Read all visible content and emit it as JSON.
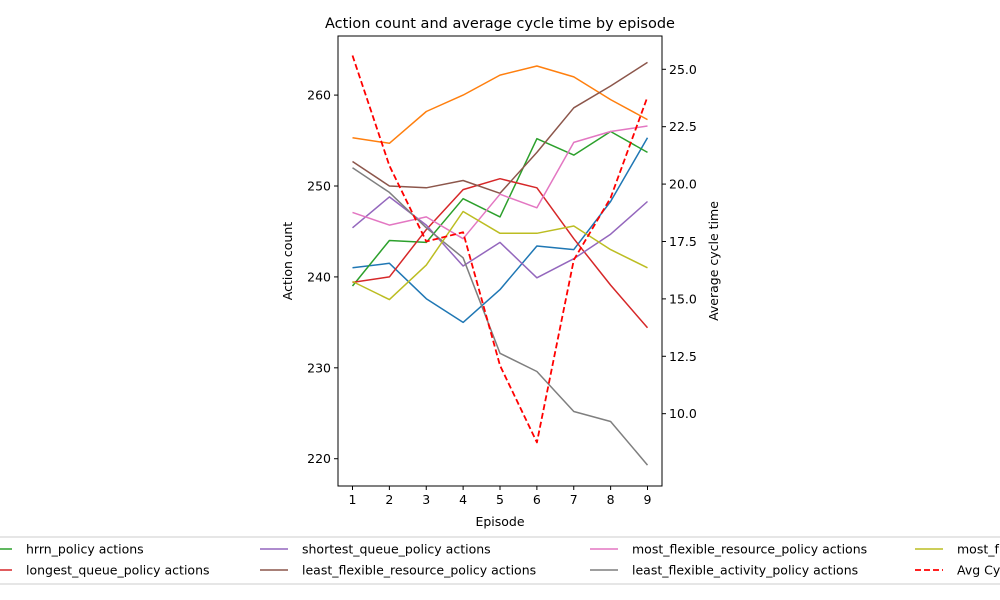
{
  "chart_data": {
    "type": "line",
    "title": "Action count and average cycle time by episode",
    "xlabel": "Episode",
    "ylabel": "Action count",
    "ylabel_right": "Average cycle time",
    "x": [
      1,
      2,
      3,
      4,
      5,
      6,
      7,
      8,
      9
    ],
    "x_ticks": [
      "1",
      "2",
      "3",
      "4",
      "5",
      "6",
      "7",
      "8",
      "9"
    ],
    "ylim": [
      217,
      266.5
    ],
    "y_ticks": [
      "220",
      "230",
      "240",
      "250",
      "260"
    ],
    "ylim_right": [
      6.85,
      26.45
    ],
    "y_ticks_right": [
      "10.0",
      "12.5",
      "15.0",
      "17.5",
      "20.0",
      "22.5",
      "25.0"
    ],
    "grid": false,
    "legend_position": "bottom",
    "series": [
      {
        "name": "",
        "color": "#1f77b4",
        "style": "solid",
        "axis": "left",
        "values": [
          241.0,
          241.5,
          237.6,
          235.0,
          238.6,
          243.4,
          243.0,
          248.3,
          255.3
        ]
      },
      {
        "name": "",
        "color": "#ff7f0e",
        "style": "solid",
        "axis": "left",
        "values": [
          255.3,
          254.7,
          258.2,
          260.0,
          262.2,
          263.2,
          262.0,
          259.5,
          257.3
        ]
      },
      {
        "name": "hrrn_policy actions",
        "color": "#2ca02c",
        "style": "solid",
        "axis": "left",
        "values": [
          239.0,
          244.0,
          243.8,
          248.6,
          246.6,
          255.2,
          253.4,
          256.0,
          253.7
        ]
      },
      {
        "name": "longest_queue_policy actions",
        "color": "#d62728",
        "style": "solid",
        "axis": "left",
        "values": [
          239.4,
          240.0,
          245.2,
          249.6,
          250.8,
          249.8,
          244.2,
          239.1,
          234.4
        ]
      },
      {
        "name": "shortest_queue_policy actions",
        "color": "#9467bd",
        "style": "solid",
        "axis": "left",
        "values": [
          245.4,
          248.8,
          245.7,
          241.2,
          243.8,
          239.9,
          242.0,
          244.7,
          248.3
        ]
      },
      {
        "name": "least_flexible_resource_policy actions",
        "color": "#8c564b",
        "style": "solid",
        "axis": "left",
        "values": [
          252.7,
          250.0,
          249.8,
          250.6,
          249.2,
          253.7,
          258.6,
          261.0,
          263.6
        ]
      },
      {
        "name": "most_flexible_resource_policy actions",
        "color": "#e377c2",
        "style": "solid",
        "axis": "left",
        "values": [
          247.1,
          245.7,
          246.6,
          244.2,
          249.1,
          247.6,
          254.8,
          256.0,
          256.6
        ]
      },
      {
        "name": "least_flexible_activity_policy actions",
        "color": "#7f7f7f",
        "style": "solid",
        "axis": "left",
        "values": [
          252.0,
          249.3,
          245.4,
          242.1,
          231.6,
          229.6,
          225.2,
          224.1,
          219.3
        ]
      },
      {
        "name": "most_f",
        "color": "#bcbd22",
        "style": "solid",
        "axis": "left",
        "values": [
          239.5,
          237.5,
          241.3,
          247.2,
          244.8,
          244.8,
          245.6,
          243.0,
          241.0
        ]
      },
      {
        "name": "Avg Cy",
        "color": "#ff0000",
        "style": "dashed",
        "axis": "right",
        "values": [
          25.6,
          20.8,
          17.5,
          17.9,
          12.1,
          8.75,
          16.7,
          19.4,
          23.8
        ]
      }
    ]
  }
}
